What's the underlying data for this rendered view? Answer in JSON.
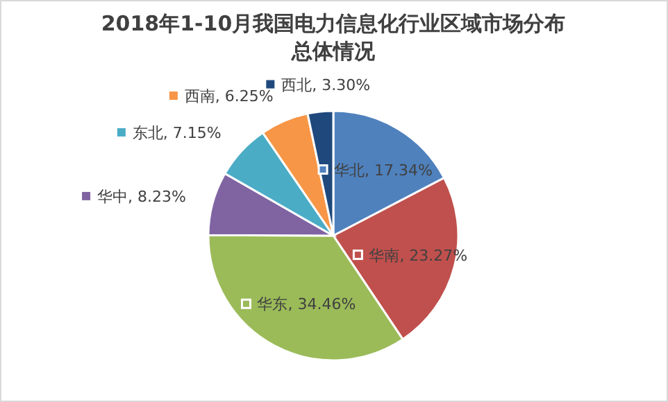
{
  "chart_data": {
    "type": "pie",
    "title": "2018年1-10月我国电力信息化行业区域市场分布总体情况",
    "categories": [
      "华北",
      "华南",
      "华东",
      "华中",
      "东北",
      "西南",
      "西北"
    ],
    "values": [
      17.34,
      23.27,
      34.46,
      8.23,
      7.15,
      6.25,
      3.3
    ],
    "value_labels": [
      "17.34%",
      "23.27%",
      "34.46%",
      "8.23%",
      "7.15%",
      "6.25%",
      "3.30%"
    ],
    "legend": "top left",
    "colors": [
      "#4f81bd",
      "#c0504d",
      "#9bbb59",
      "#8064a2",
      "#4bacc6",
      "#f79646",
      "#1f497d"
    ]
  }
}
